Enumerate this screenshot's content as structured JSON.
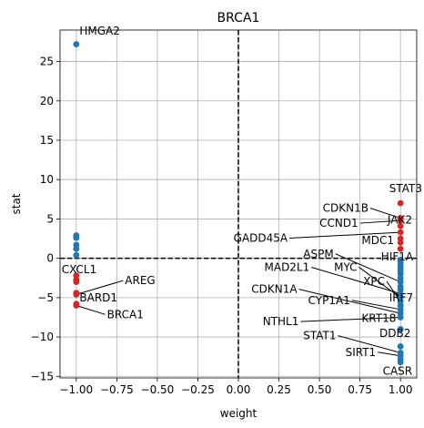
{
  "chart_data": {
    "type": "scatter",
    "title": "BRCA1",
    "xlabel": "weight",
    "ylabel": "stat",
    "xlim": [
      -1.1,
      1.1
    ],
    "ylim": [
      -15.2,
      29
    ],
    "grid": true,
    "x_ticks": [
      -1.0,
      -0.75,
      -0.5,
      -0.25,
      0.0,
      0.25,
      0.5,
      0.75,
      1.0
    ],
    "x_tick_labels": [
      "−1.00",
      "−0.75",
      "−0.50",
      "−0.25",
      "0.00",
      "0.25",
      "0.50",
      "0.75",
      "1.00"
    ],
    "y_ticks": [
      -15,
      -10,
      -5,
      0,
      5,
      10,
      15,
      20,
      25
    ],
    "y_tick_labels": [
      "−15",
      "−10",
      "−5",
      "0",
      "5",
      "10",
      "15",
      "20",
      "25"
    ],
    "reference_lines": {
      "x": 0,
      "y": 0
    },
    "colors": {
      "positive": "#d62728",
      "negative": "#1f77b4"
    },
    "points": [
      {
        "x": -1,
        "y": 27.2,
        "color": "negative"
      },
      {
        "x": -1,
        "y": 2.9,
        "color": "negative"
      },
      {
        "x": -1,
        "y": 2.6,
        "color": "negative"
      },
      {
        "x": -1,
        "y": 1.7,
        "color": "negative"
      },
      {
        "x": -1,
        "y": 1.2,
        "color": "negative"
      },
      {
        "x": -1,
        "y": 0.4,
        "color": "negative"
      },
      {
        "x": -1,
        "y": -2.2,
        "color": "positive"
      },
      {
        "x": -1,
        "y": -2.7,
        "color": "positive"
      },
      {
        "x": -1,
        "y": -3.0,
        "color": "positive"
      },
      {
        "x": -1,
        "y": -4.4,
        "color": "positive"
      },
      {
        "x": -1,
        "y": -4.6,
        "color": "positive"
      },
      {
        "x": -1,
        "y": -5.8,
        "color": "positive"
      },
      {
        "x": -1,
        "y": -6.0,
        "color": "positive"
      },
      {
        "x": 1,
        "y": 7.0,
        "color": "positive"
      },
      {
        "x": 1,
        "y": 5.1,
        "color": "positive"
      },
      {
        "x": 1,
        "y": 4.8,
        "color": "positive"
      },
      {
        "x": 1,
        "y": 4.1,
        "color": "positive"
      },
      {
        "x": 1,
        "y": 3.3,
        "color": "positive"
      },
      {
        "x": 1,
        "y": 2.5,
        "color": "positive"
      },
      {
        "x": 1,
        "y": 2.0,
        "color": "positive"
      },
      {
        "x": 1,
        "y": 1.2,
        "color": "positive"
      },
      {
        "x": 1,
        "y": -0.2,
        "color": "negative"
      },
      {
        "x": 1,
        "y": -0.5,
        "color": "negative"
      },
      {
        "x": 1,
        "y": -0.8,
        "color": "negative"
      },
      {
        "x": 1,
        "y": -1.2,
        "color": "negative"
      },
      {
        "x": 1,
        "y": -1.6,
        "color": "negative"
      },
      {
        "x": 1,
        "y": -2.0,
        "color": "negative"
      },
      {
        "x": 1,
        "y": -2.5,
        "color": "negative"
      },
      {
        "x": 1,
        "y": -3.0,
        "color": "negative"
      },
      {
        "x": 1,
        "y": -3.6,
        "color": "negative"
      },
      {
        "x": 1,
        "y": -4.0,
        "color": "negative"
      },
      {
        "x": 1,
        "y": -4.5,
        "color": "negative"
      },
      {
        "x": 1,
        "y": -5.0,
        "color": "negative"
      },
      {
        "x": 1,
        "y": -5.5,
        "color": "negative"
      },
      {
        "x": 1,
        "y": -6.0,
        "color": "negative"
      },
      {
        "x": 1,
        "y": -6.5,
        "color": "negative"
      },
      {
        "x": 1,
        "y": -7.0,
        "color": "negative"
      },
      {
        "x": 1,
        "y": -7.5,
        "color": "negative"
      },
      {
        "x": 1,
        "y": -9.0,
        "color": "negative"
      },
      {
        "x": 1,
        "y": -11.2,
        "color": "negative"
      },
      {
        "x": 1,
        "y": -12.0,
        "color": "negative"
      },
      {
        "x": 1,
        "y": -12.4,
        "color": "negative"
      },
      {
        "x": 1,
        "y": -12.8,
        "color": "negative"
      },
      {
        "x": 1,
        "y": -13.2,
        "color": "negative"
      }
    ],
    "annotations": [
      {
        "label": "HMGA2",
        "point": [
          -1,
          27.2
        ],
        "text": [
          -0.98,
          28.4
        ]
      },
      {
        "label": "CXCL1",
        "point": [
          -1,
          -2.2
        ],
        "text": [
          -1.09,
          -1.9
        ]
      },
      {
        "label": "AREG",
        "point": [
          -1,
          -4.6
        ],
        "text": [
          -0.7,
          -3.3
        ]
      },
      {
        "label": "BARD1",
        "point": [
          -1,
          -4.4
        ],
        "text": [
          -0.98,
          -5.5
        ]
      },
      {
        "label": "BRCA1",
        "point": [
          -1,
          -6.0
        ],
        "text": [
          -0.81,
          -7.6
        ]
      },
      {
        "label": "STAT3",
        "point": [
          1,
          7.0
        ],
        "text": [
          0.93,
          8.4
        ]
      },
      {
        "label": "CDKN1B",
        "point": [
          1,
          5.1
        ],
        "text": [
          0.52,
          5.9
        ]
      },
      {
        "label": "JAK2",
        "point": [
          1,
          4.1
        ],
        "text": [
          0.92,
          4.4
        ]
      },
      {
        "label": "CCND1",
        "point": [
          1,
          4.8
        ],
        "text": [
          0.5,
          4.0
        ]
      },
      {
        "label": "MDC1",
        "point": [
          1,
          2.5
        ],
        "text": [
          0.76,
          1.8
        ]
      },
      {
        "label": "GADD45A",
        "point": [
          1,
          3.3
        ],
        "text": [
          -0.03,
          2.1
        ]
      },
      {
        "label": "ASPM",
        "point": [
          1,
          -3.0
        ],
        "text": [
          0.4,
          0.1
        ]
      },
      {
        "label": "HIF1A",
        "point": [
          1,
          -0.2
        ],
        "text": [
          0.88,
          -0.3
        ]
      },
      {
        "label": "MAD2L1",
        "point": [
          1,
          -4.5
        ],
        "text": [
          0.16,
          -1.6
        ]
      },
      {
        "label": "MYC",
        "point": [
          1,
          -5.0
        ],
        "text": [
          0.59,
          -1.6
        ]
      },
      {
        "label": "XPC",
        "point": [
          1,
          -5.5
        ],
        "text": [
          0.77,
          -3.4
        ]
      },
      {
        "label": "CDKN1A",
        "point": [
          1,
          -7.0
        ],
        "text": [
          0.08,
          -4.4
        ]
      },
      {
        "label": "IRF7",
        "point": [
          1,
          -6.0
        ],
        "text": [
          0.93,
          -5.5
        ]
      },
      {
        "label": "CYP1A1",
        "point": [
          1,
          -6.5
        ],
        "text": [
          0.43,
          -5.8
        ]
      },
      {
        "label": "KRT18",
        "point": [
          1,
          -7.5
        ],
        "text": [
          0.76,
          -8.1
        ]
      },
      {
        "label": "NTHL1",
        "point": [
          1,
          -7.5
        ],
        "text": [
          0.15,
          -8.5
        ]
      },
      {
        "label": "DDB2",
        "point": [
          1,
          -9.0
        ],
        "text": [
          0.87,
          -10.0
        ]
      },
      {
        "label": "STAT1",
        "point": [
          1,
          -12.0
        ],
        "text": [
          0.4,
          -10.3
        ]
      },
      {
        "label": "SIRT1",
        "point": [
          1,
          -12.4
        ],
        "text": [
          0.66,
          -12.4
        ]
      },
      {
        "label": "CASR",
        "point": [
          1,
          -13.2
        ],
        "text": [
          0.89,
          -14.8
        ]
      }
    ]
  }
}
